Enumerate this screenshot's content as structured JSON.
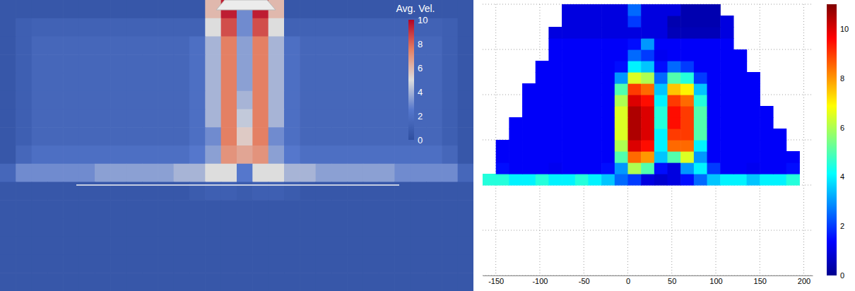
{
  "chart_data": [
    {
      "type": "heatmap",
      "color": "coolwarm",
      "tick_labels": false,
      "grid": false,
      "x": [
        0,
        1,
        2,
        3,
        4,
        5,
        6,
        7,
        8,
        9,
        10,
        11,
        12,
        13,
        14,
        15,
        16,
        17,
        18,
        19,
        20,
        21,
        22,
        23,
        24,
        25,
        26,
        27,
        28,
        29
      ],
      "y": [
        15,
        14,
        13,
        12,
        11,
        10,
        9,
        8,
        7,
        6,
        5,
        4,
        3,
        2,
        1,
        0
      ],
      "xlim": [
        -0.5,
        29.5
      ],
      "ylim": [
        -0.5,
        15.5
      ],
      "z": [
        [
          0.5,
          0.5,
          0.5,
          0.5,
          0.5,
          0.5,
          0.5,
          0.5,
          0.5,
          0.5,
          0.5,
          0.5,
          0.5,
          6,
          9.5,
          3,
          9.5,
          6,
          0.5,
          0.5,
          0.5,
          0.5,
          0.5,
          0.5,
          0.5,
          0.5,
          0.5,
          0.5,
          0.5,
          0.5
        ],
        [
          0.5,
          1,
          1.2,
          1.2,
          1.2,
          1.2,
          1.2,
          1.2,
          1.2,
          1.2,
          1.2,
          1.2,
          1.2,
          5,
          8.5,
          3,
          8.5,
          5,
          1.2,
          1.2,
          1.2,
          1.2,
          1.2,
          1.2,
          1.2,
          1.2,
          1.2,
          1.2,
          1,
          0.5
        ],
        [
          0.5,
          1,
          1.5,
          1.5,
          1.5,
          1.5,
          1.5,
          1.5,
          1.5,
          1.5,
          1.5,
          1.5,
          2,
          4,
          7.5,
          3.5,
          7.5,
          4,
          2,
          1.5,
          1.5,
          1.5,
          1.5,
          1.5,
          1.5,
          1.5,
          1.5,
          1.5,
          1,
          0.5
        ],
        [
          0.5,
          1,
          1.5,
          1.5,
          1.5,
          1.5,
          1.5,
          1.5,
          1.5,
          1.5,
          1.5,
          1.5,
          2,
          4,
          7.5,
          3.5,
          7.5,
          4,
          2,
          1.5,
          1.5,
          1.5,
          1.5,
          1.5,
          1.5,
          1.5,
          1.5,
          1.5,
          1,
          0.5
        ],
        [
          0.5,
          1,
          1.5,
          1.5,
          1.5,
          1.5,
          1.5,
          1.5,
          1.5,
          1.5,
          1.5,
          1.5,
          2,
          4,
          7.5,
          3.5,
          7.5,
          4,
          2,
          1.5,
          1.5,
          1.5,
          1.5,
          1.5,
          1.5,
          1.5,
          1.5,
          1.5,
          1,
          0.5
        ],
        [
          0.5,
          1,
          1.5,
          1.5,
          1.5,
          1.5,
          1.5,
          1.5,
          1.5,
          1.5,
          1.5,
          1.5,
          2,
          4,
          7.5,
          4,
          7.5,
          4,
          2,
          1.5,
          1.5,
          1.5,
          1.5,
          1.5,
          1.5,
          1.5,
          1.5,
          1.5,
          1,
          0.5
        ],
        [
          0.5,
          1,
          1.5,
          1.5,
          1.5,
          1.5,
          1.5,
          1.5,
          1.5,
          1.5,
          1.5,
          1.5,
          2,
          4,
          7.5,
          4.5,
          7.5,
          4,
          2,
          1.5,
          1.5,
          1.5,
          1.5,
          1.5,
          1.5,
          1.5,
          1.5,
          1.5,
          1,
          0.5
        ],
        [
          0.5,
          1,
          1.5,
          1.5,
          1.5,
          1.5,
          1.5,
          1.5,
          1.5,
          1.5,
          1.5,
          1.5,
          2,
          3,
          7.5,
          5.5,
          7.5,
          3,
          2,
          1.5,
          1.5,
          1.5,
          1.5,
          1.5,
          1.5,
          1.5,
          1.5,
          1.5,
          1,
          0.5
        ],
        [
          0.5,
          1.5,
          2,
          2,
          2,
          2,
          2,
          2,
          2,
          2,
          2,
          2,
          2.5,
          3.5,
          7,
          6.5,
          7,
          3.5,
          2.5,
          2,
          2,
          2,
          2,
          2,
          2,
          2,
          2,
          2,
          1.5,
          0.5
        ],
        [
          1.5,
          3,
          3,
          3,
          3,
          3,
          3.5,
          3.5,
          3.5,
          3.5,
          3.5,
          4,
          4,
          5,
          5,
          2.5,
          5,
          5,
          4,
          4,
          3.5,
          3.5,
          3.5,
          3.5,
          3.5,
          3,
          3,
          3,
          3,
          1.5
        ],
        [
          0.5,
          0.5,
          0.5,
          0.5,
          0.5,
          0.5,
          0.5,
          0.5,
          0.5,
          0.5,
          0.5,
          0.5,
          0.8,
          1,
          1,
          0.8,
          1,
          1,
          0.8,
          0.5,
          0.5,
          0.5,
          0.5,
          0.5,
          0.5,
          0.5,
          0.5,
          0.5,
          0.5,
          0.5
        ],
        [
          0.5,
          0.5,
          0.5,
          0.5,
          0.5,
          0.5,
          0.5,
          0.5,
          0.5,
          0.5,
          0.5,
          0.5,
          0.5,
          0.5,
          0.5,
          0.5,
          0.5,
          0.5,
          0.5,
          0.5,
          0.5,
          0.5,
          0.5,
          0.5,
          0.5,
          0.5,
          0.5,
          0.5,
          0.5,
          0.5
        ],
        [
          0.5,
          0.5,
          0.5,
          0.5,
          0.5,
          0.5,
          0.5,
          0.5,
          0.5,
          0.5,
          0.5,
          0.5,
          0.5,
          0.5,
          0.5,
          0.5,
          0.5,
          0.5,
          0.5,
          0.5,
          0.5,
          0.5,
          0.5,
          0.5,
          0.5,
          0.5,
          0.5,
          0.5,
          0.5,
          0.5
        ],
        [
          0.5,
          0.5,
          0.5,
          0.5,
          0.5,
          0.5,
          0.5,
          0.5,
          0.5,
          0.5,
          0.5,
          0.5,
          0.5,
          0.5,
          0.5,
          0.5,
          0.5,
          0.5,
          0.5,
          0.5,
          0.5,
          0.5,
          0.5,
          0.5,
          0.5,
          0.5,
          0.5,
          0.5,
          0.5,
          0.5
        ],
        [
          0.5,
          0.5,
          0.5,
          0.5,
          0.5,
          0.5,
          0.5,
          0.5,
          0.5,
          0.5,
          0.5,
          0.5,
          0.5,
          0.5,
          0.5,
          0.5,
          0.5,
          0.5,
          0.5,
          0.5,
          0.5,
          0.5,
          0.5,
          0.5,
          0.5,
          0.5,
          0.5,
          0.5,
          0.5,
          0.5
        ],
        [
          0.5,
          0.5,
          0.5,
          0.5,
          0.5,
          0.5,
          0.5,
          0.5,
          0.5,
          0.5,
          0.5,
          0.5,
          0.5,
          0.5,
          0.5,
          0.5,
          0.5,
          0.5,
          0.5,
          0.5,
          0.5,
          0.5,
          0.5,
          0.5,
          0.5,
          0.5,
          0.5,
          0.5,
          0.5,
          0.5
        ]
      ],
      "colorbar": {
        "title": "Avg. Vel.",
        "range": [
          0,
          10
        ],
        "ticks": [
          0,
          2,
          4,
          6,
          8,
          10
        ]
      }
    },
    {
      "type": "heatmap",
      "color": "jet",
      "tick_labels": "x",
      "grid": true,
      "x": [
        -157.5,
        -142.5,
        -127.5,
        -112.5,
        -97.5,
        -82.5,
        -67.5,
        -52.5,
        -37.5,
        -22.5,
        -7.5,
        7.5,
        22.5,
        37.5,
        52.5,
        67.5,
        82.5,
        97.5,
        112.5,
        127.5,
        142.5,
        157.5,
        172.5,
        187.5,
        202.5
      ],
      "y": [
        2.125,
        2.375,
        2.625,
        2.875,
        3.125,
        3.375,
        3.625,
        3.875,
        4.125,
        4.375,
        4.625,
        4.875,
        5.125,
        5.375,
        5.625,
        5.875
      ],
      "xlim": [
        -165,
        210
      ],
      "ylim": [
        0,
        6
      ],
      "xticks": [
        -150,
        -100,
        -50,
        0,
        50,
        100,
        150,
        200
      ],
      "yticks": [
        0,
        1,
        2,
        3,
        4,
        5,
        6
      ],
      "z": [
        [
          4.5,
          4.5,
          4,
          4,
          4.5,
          4,
          4,
          4.5,
          4,
          3.5,
          2.5,
          2,
          1,
          0.8,
          1,
          1.5,
          2.5,
          3.5,
          4,
          4,
          3.5,
          4,
          4,
          4.5,
          null
        ],
        [
          null,
          1.5,
          1.3,
          1.3,
          1.3,
          1.2,
          1.3,
          1.3,
          1.3,
          1.5,
          3,
          6,
          5,
          1.5,
          1,
          3,
          4,
          2,
          1.3,
          1.3,
          1.2,
          1.3,
          1.3,
          1.5,
          null
        ],
        [
          null,
          1.3,
          1.3,
          1.3,
          1.3,
          1.3,
          1.3,
          1.3,
          1.3,
          1.3,
          5,
          8.5,
          8,
          3.5,
          5,
          6.5,
          3,
          1.3,
          1.3,
          1.3,
          1.3,
          1.3,
          1.3,
          1.3,
          null
        ],
        [
          null,
          1.3,
          1.3,
          1.3,
          1.3,
          1.3,
          1.3,
          1.3,
          1.3,
          1.3,
          6,
          10,
          9.5,
          4,
          8.5,
          8.5,
          4,
          1.3,
          1.3,
          1.3,
          1.3,
          1.3,
          1.3,
          null,
          null
        ],
        [
          null,
          null,
          1.3,
          1.3,
          1.3,
          1.3,
          1.3,
          1.3,
          1.3,
          1.3,
          6.5,
          10.5,
          10,
          4,
          9,
          9,
          5,
          1.3,
          1.3,
          1.3,
          1.3,
          1.3,
          1.3,
          null,
          null
        ],
        [
          null,
          null,
          1.3,
          1.3,
          1.3,
          1.3,
          1.3,
          1.3,
          1.3,
          1.3,
          6.5,
          10.5,
          10,
          4.5,
          9.5,
          9,
          5,
          1.3,
          1.3,
          1.3,
          1.3,
          1.3,
          null,
          null,
          null
        ],
        [
          null,
          null,
          null,
          1.3,
          1.3,
          1.3,
          1.3,
          1.3,
          1.3,
          1.3,
          6.5,
          10.5,
          10,
          4.5,
          9.5,
          9,
          5,
          1.3,
          1.3,
          1.3,
          1.3,
          1.3,
          null,
          null,
          null
        ],
        [
          null,
          null,
          null,
          1.3,
          1.3,
          1.3,
          1.3,
          1.3,
          1.3,
          1.3,
          6,
          10,
          9.5,
          4,
          9,
          8.5,
          4.5,
          1.3,
          1.3,
          1.3,
          1.3,
          null,
          null,
          null,
          null
        ],
        [
          null,
          null,
          null,
          1.3,
          1.3,
          1.3,
          1.3,
          1.3,
          1.3,
          1.3,
          5,
          9,
          8.5,
          3.5,
          7.5,
          7,
          3.5,
          1.3,
          1.3,
          1.3,
          1.3,
          null,
          null,
          null,
          null
        ],
        [
          null,
          null,
          null,
          null,
          1.3,
          1.3,
          1.3,
          1.3,
          1.3,
          1.3,
          3,
          6.5,
          6,
          2.5,
          5,
          4.5,
          2,
          1.3,
          1.3,
          1.3,
          1.3,
          null,
          null,
          null,
          null
        ],
        [
          null,
          null,
          null,
          null,
          1.3,
          1.3,
          1.3,
          1.3,
          1.3,
          1.3,
          1.5,
          4,
          3.5,
          1.5,
          2.5,
          2,
          1.3,
          1.3,
          1.3,
          1.3,
          null,
          null,
          null,
          null,
          null
        ],
        [
          null,
          null,
          null,
          null,
          null,
          1.3,
          1.3,
          1.3,
          1.3,
          1.3,
          1.3,
          2.5,
          2,
          1.2,
          1.3,
          1.3,
          1.3,
          1.3,
          1.3,
          1.3,
          null,
          null,
          null,
          null,
          null
        ],
        [
          null,
          null,
          null,
          null,
          null,
          1.3,
          1.3,
          1.3,
          1.3,
          1.3,
          1.3,
          1.5,
          3,
          1.3,
          1.3,
          1.3,
          1.3,
          1.3,
          1.3,
          null,
          null,
          null,
          null,
          null,
          null
        ],
        [
          null,
          null,
          null,
          null,
          null,
          1,
          1,
          1,
          1,
          1,
          1,
          1,
          1,
          1,
          0.5,
          0.5,
          0.5,
          0.5,
          1,
          null,
          null,
          null,
          null,
          null,
          null
        ],
        [
          null,
          null,
          null,
          null,
          null,
          null,
          1,
          1,
          1,
          1,
          1,
          2,
          1,
          1,
          0.4,
          0.4,
          0.4,
          0.4,
          1,
          null,
          null,
          null,
          null,
          null,
          null
        ],
        [
          null,
          null,
          null,
          null,
          null,
          null,
          1,
          1,
          1,
          1,
          1,
          2.5,
          1,
          1,
          1,
          0.4,
          0.4,
          0.4,
          null,
          null,
          null,
          null,
          null,
          null,
          null
        ]
      ],
      "colorbar": {
        "range": [
          0,
          11
        ],
        "ticks": [
          0,
          2,
          4,
          6,
          8,
          10
        ]
      }
    }
  ]
}
